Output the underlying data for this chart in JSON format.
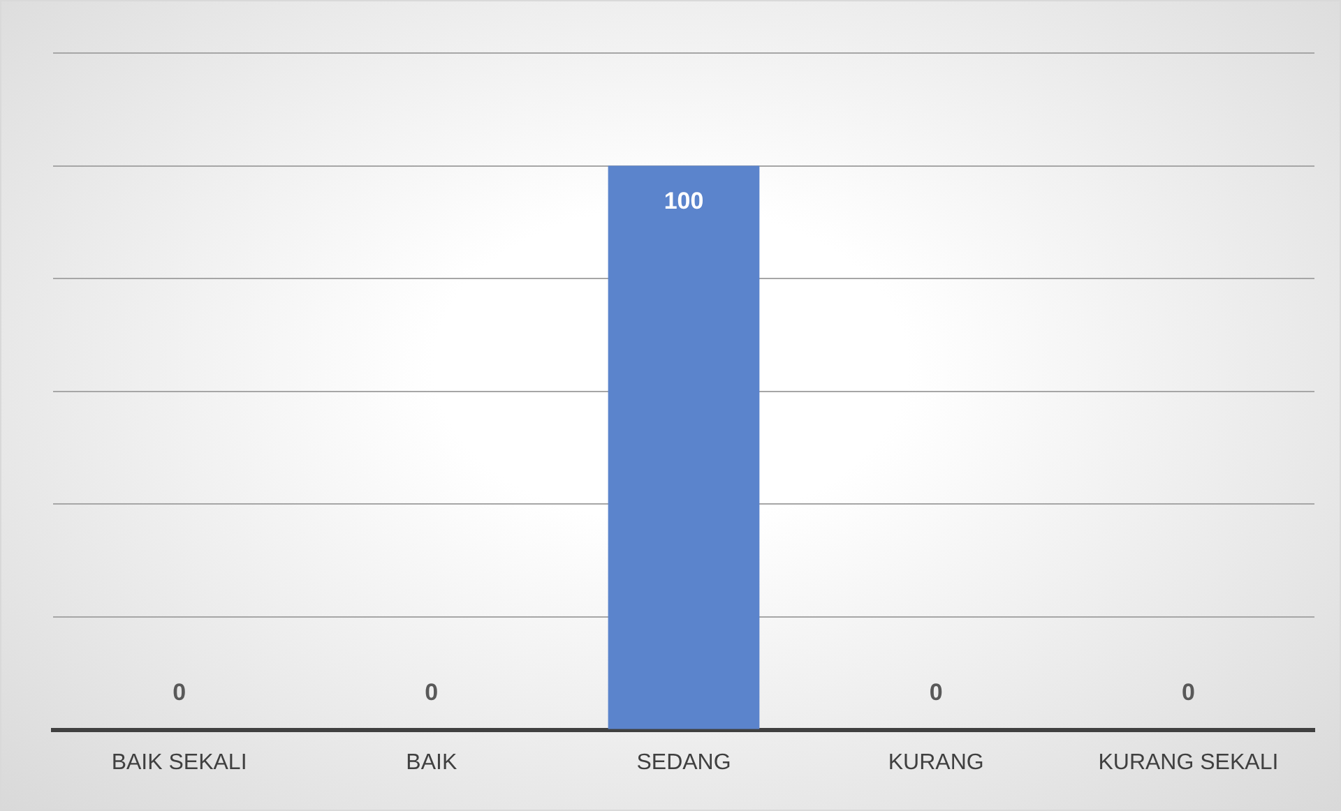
{
  "chart_data": {
    "type": "bar",
    "categories": [
      "BAIK SEKALI",
      "BAIK",
      "SEDANG",
      "KURANG",
      "KURANG SEKALI"
    ],
    "values": [
      0,
      0,
      100,
      0,
      0
    ],
    "color": "#5b84cc",
    "ylim": [
      0,
      120
    ],
    "yticks": [
      {
        "value": 0,
        "label": null
      },
      {
        "value": 20,
        "label": null
      },
      {
        "value": 40,
        "label": null
      },
      {
        "value": 60,
        "label": null
      },
      {
        "value": 80,
        "label": null
      },
      {
        "value": 100,
        "label": null
      },
      {
        "value": 120,
        "label": null
      }
    ],
    "grid": "y",
    "tick_labels": "x",
    "data_labels": true
  }
}
